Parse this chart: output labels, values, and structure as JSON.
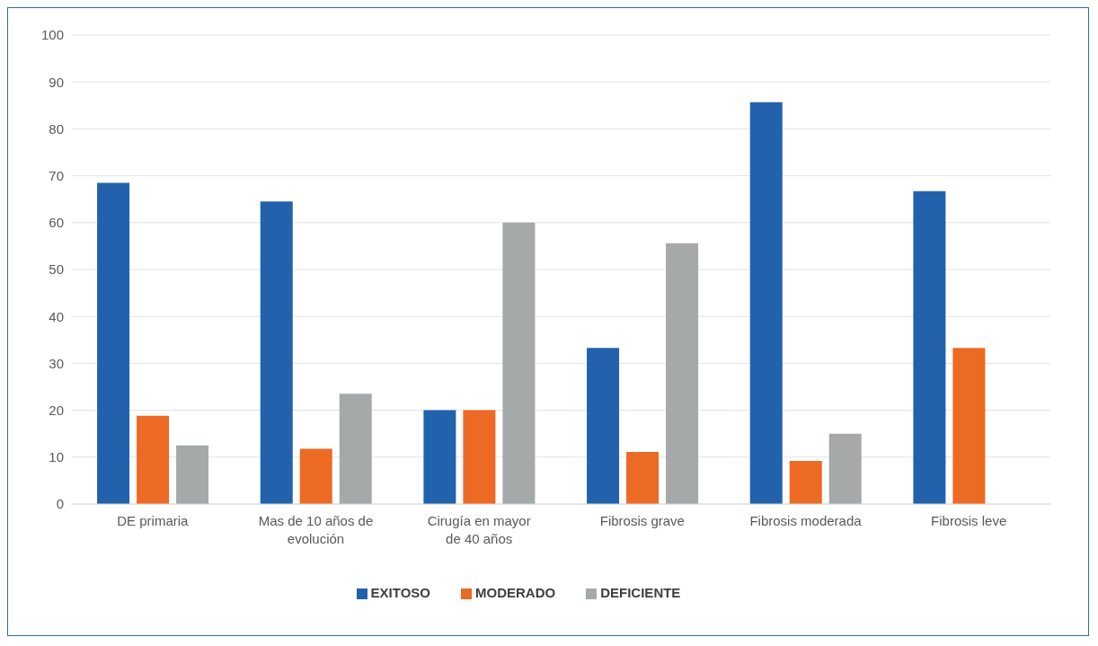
{
  "chart_data": {
    "type": "bar",
    "categories": [
      "DE primaria",
      "Mas de 10 años de evolución",
      "Cirugía en mayor de 40 años",
      "Fibrosis grave",
      "Fibrosis moderada",
      "Fibrosis leve"
    ],
    "series": [
      {
        "name": "EXITOSO",
        "color": "#2262ad",
        "values": [
          68.5,
          64.5,
          20,
          33.3,
          85.7,
          66.7
        ]
      },
      {
        "name": "MODERADO",
        "color": "#ec6a23",
        "values": [
          18.8,
          11.8,
          20,
          11.1,
          9.2,
          33.3
        ]
      },
      {
        "name": "DEFICIENTE",
        "color": "#a5a9aa",
        "values": [
          12.5,
          23.5,
          60,
          55.6,
          15,
          null
        ]
      }
    ],
    "ylim": [
      0,
      100
    ],
    "yticks": [
      0,
      10,
      20,
      30,
      40,
      50,
      60,
      70,
      80,
      90,
      100
    ],
    "grid": "y",
    "legend": "bottom"
  }
}
